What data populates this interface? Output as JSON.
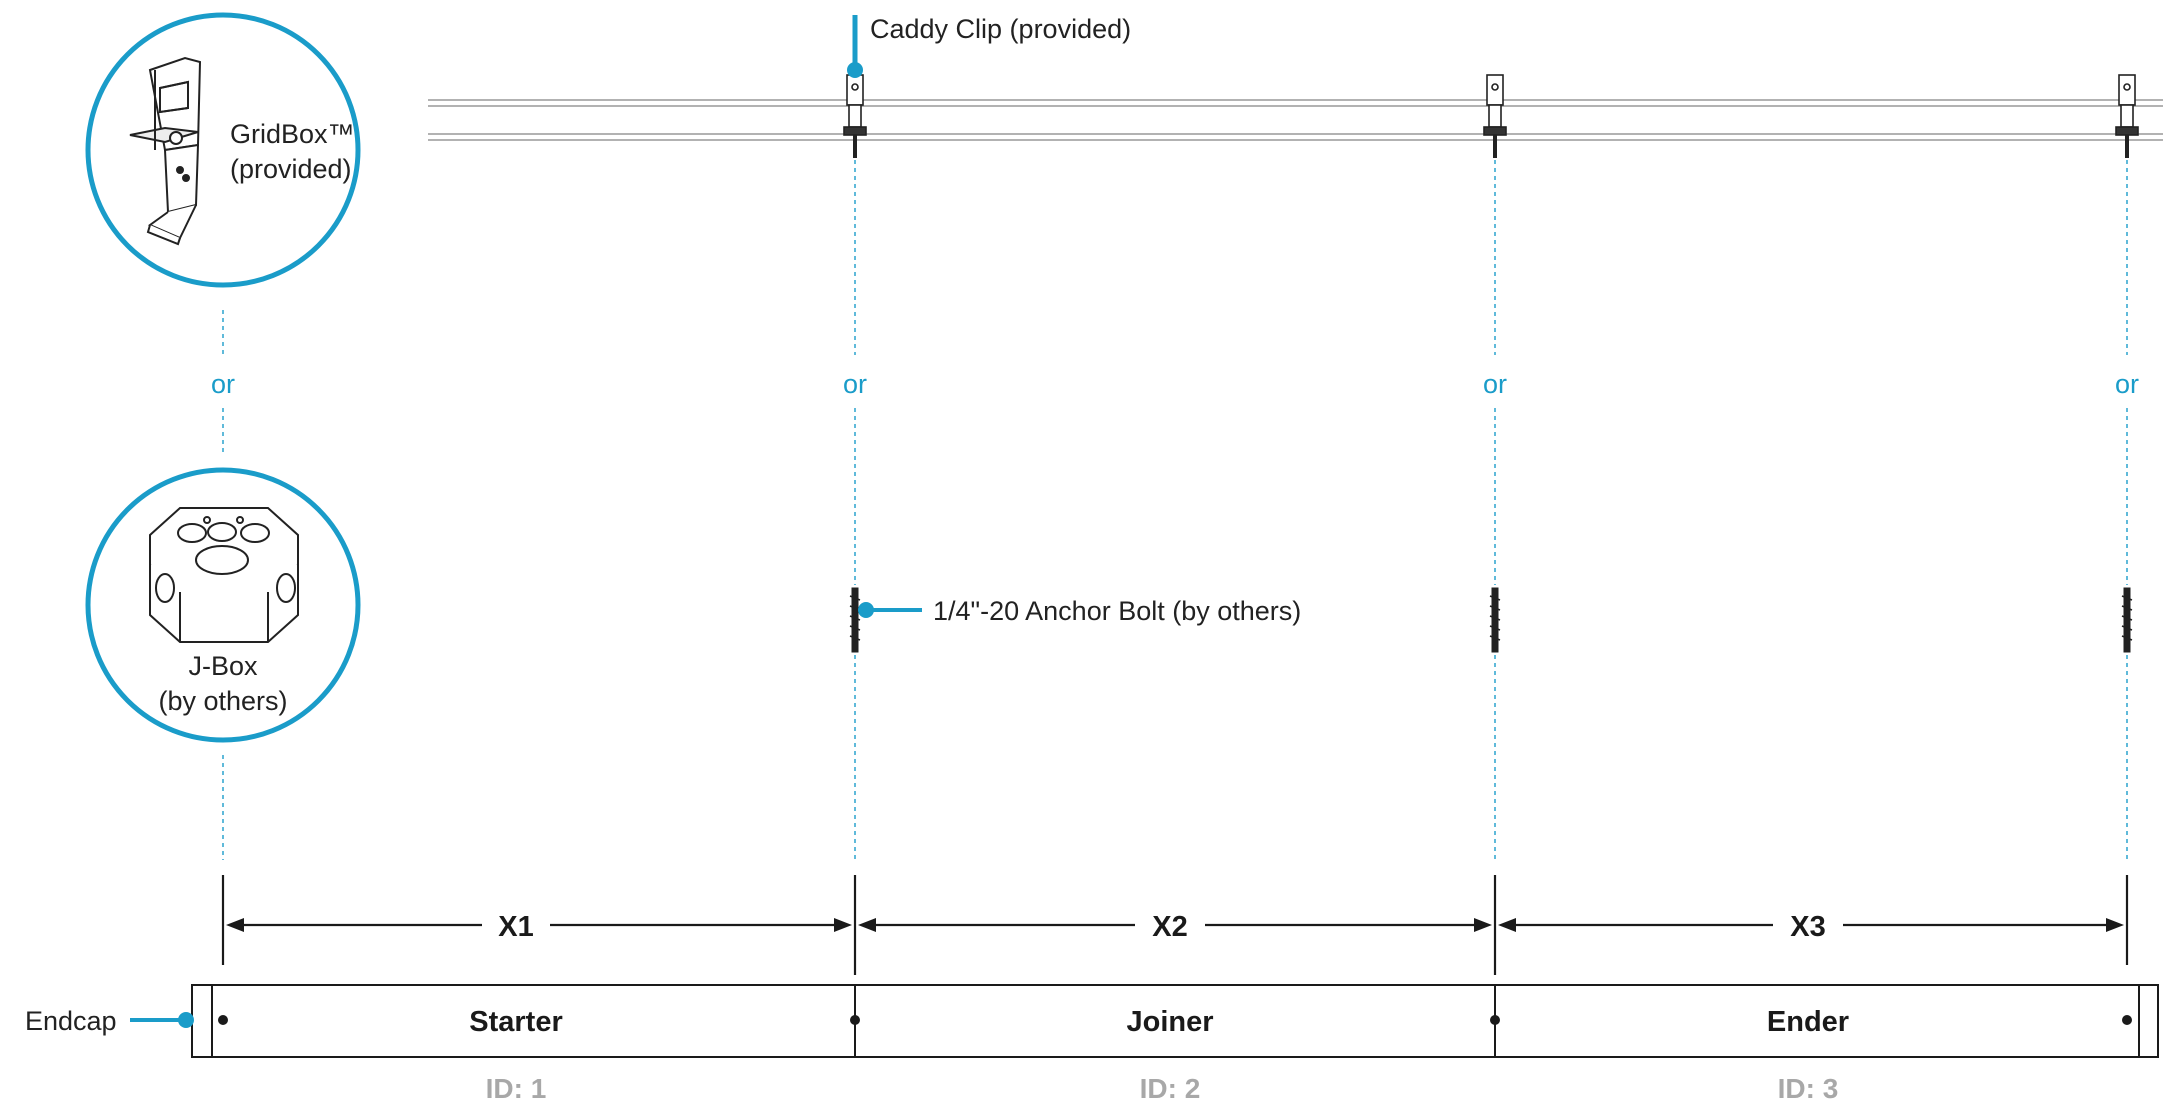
{
  "colors": {
    "accent": "#1a9cc9",
    "dashed": "#4fb3d6",
    "line": "#1a1a1a",
    "id_text": "#a8a8a8"
  },
  "callouts": {
    "gridbox_line1": "GridBox™",
    "gridbox_line2": "(provided)",
    "jbox_line1": "J-Box",
    "jbox_line2": "(by others)",
    "caddy_clip": "Caddy Clip (provided)",
    "anchor_bolt": "1/4\"-20 Anchor Bolt (by others)",
    "endcap": "Endcap",
    "or_label": "or"
  },
  "dimensions": [
    "X1",
    "X2",
    "X3"
  ],
  "segments": [
    {
      "name": "Starter",
      "id": "ID: 1"
    },
    {
      "name": "Joiner",
      "id": "ID: 2"
    },
    {
      "name": "Ender",
      "id": "ID: 3"
    }
  ],
  "icons": {
    "gridbox": "gridbox-bracket-icon",
    "jbox": "octagonal-junction-box-icon",
    "caddy": "caddy-clip-icon",
    "bolt": "anchor-bolt-icon"
  }
}
